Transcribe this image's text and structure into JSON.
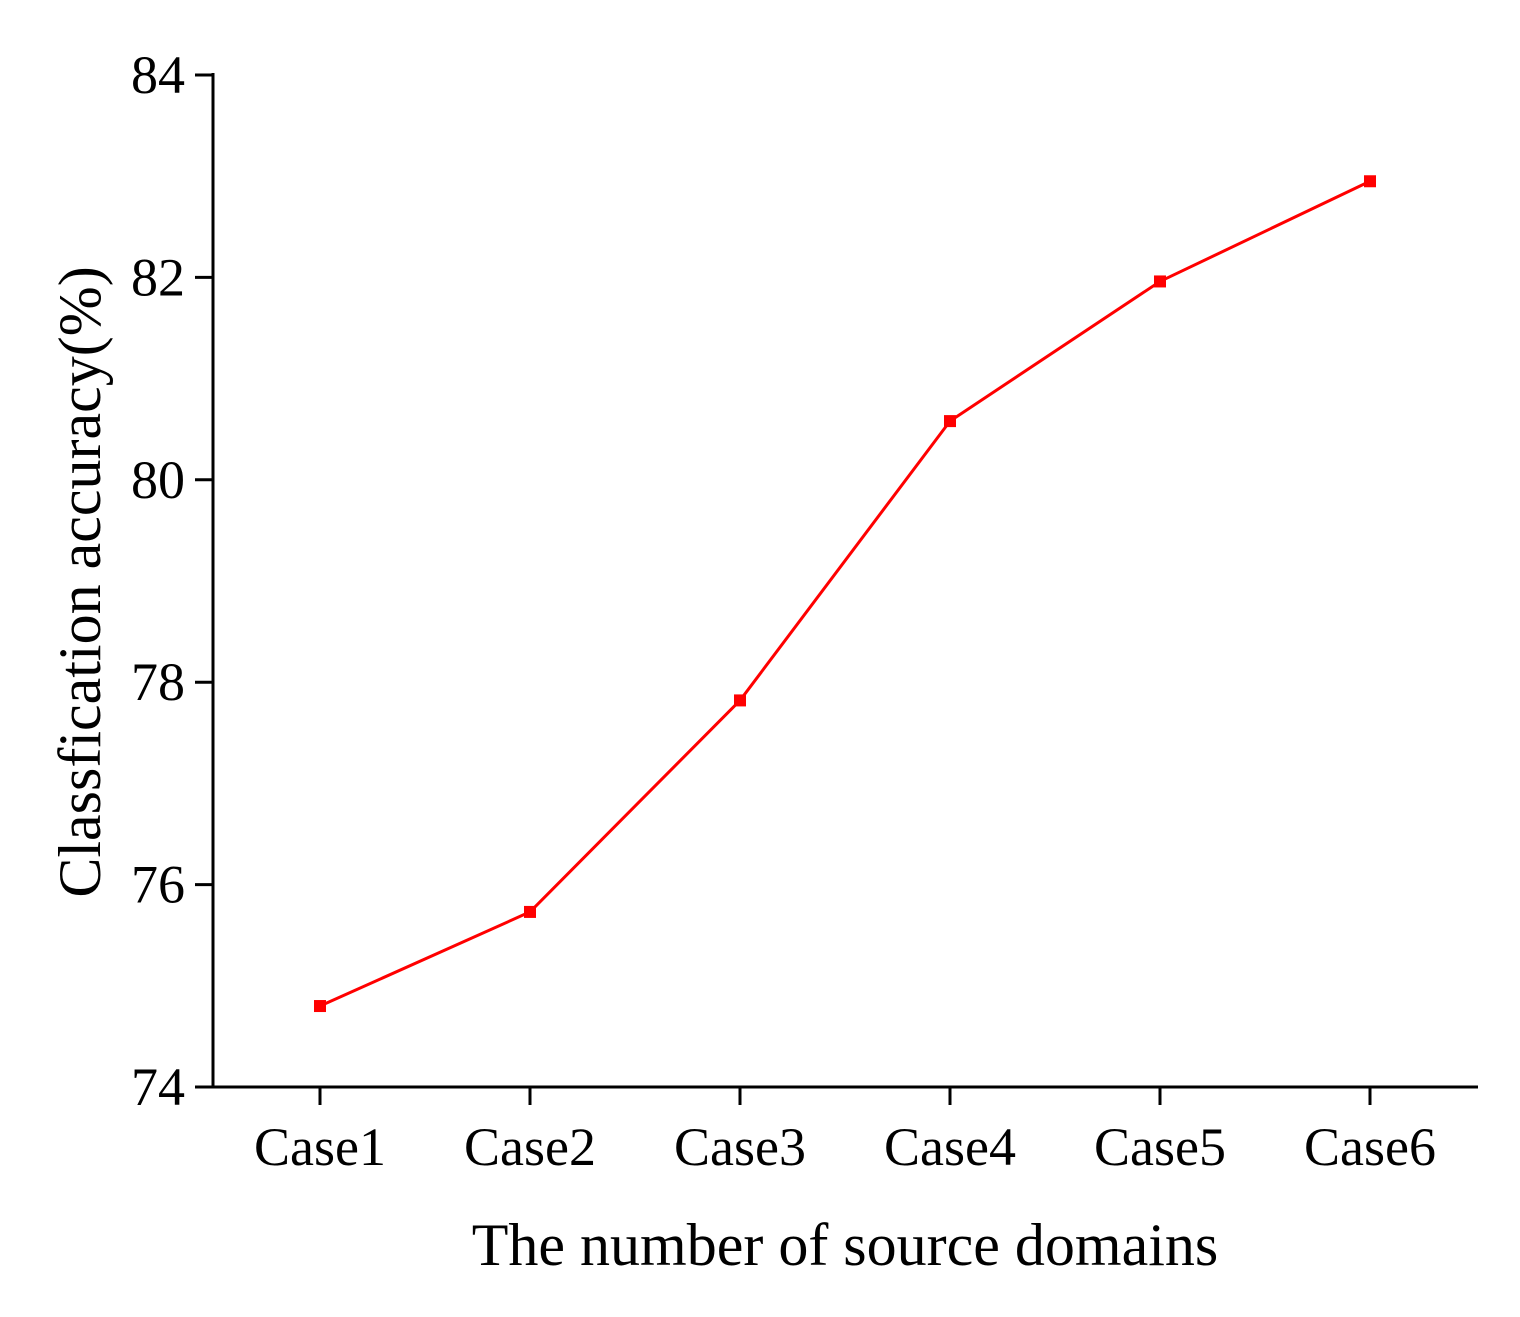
{
  "chart_data": {
    "type": "line",
    "title": "",
    "xlabel": "The number of source domains",
    "ylabel": "Classfication accuracy(%)",
    "categories": [
      "Case1",
      "Case2",
      "Case3",
      "Case4",
      "Case5",
      "Case6"
    ],
    "series": [
      {
        "values": [
          74.8,
          75.73,
          77.82,
          80.58,
          81.96,
          82.95
        ],
        "color": "#ff0000",
        "marker": "square"
      }
    ],
    "ylim": [
      74,
      84
    ],
    "yticks": [
      74,
      76,
      78,
      80,
      82,
      84
    ],
    "grid": false,
    "legend": "none"
  }
}
